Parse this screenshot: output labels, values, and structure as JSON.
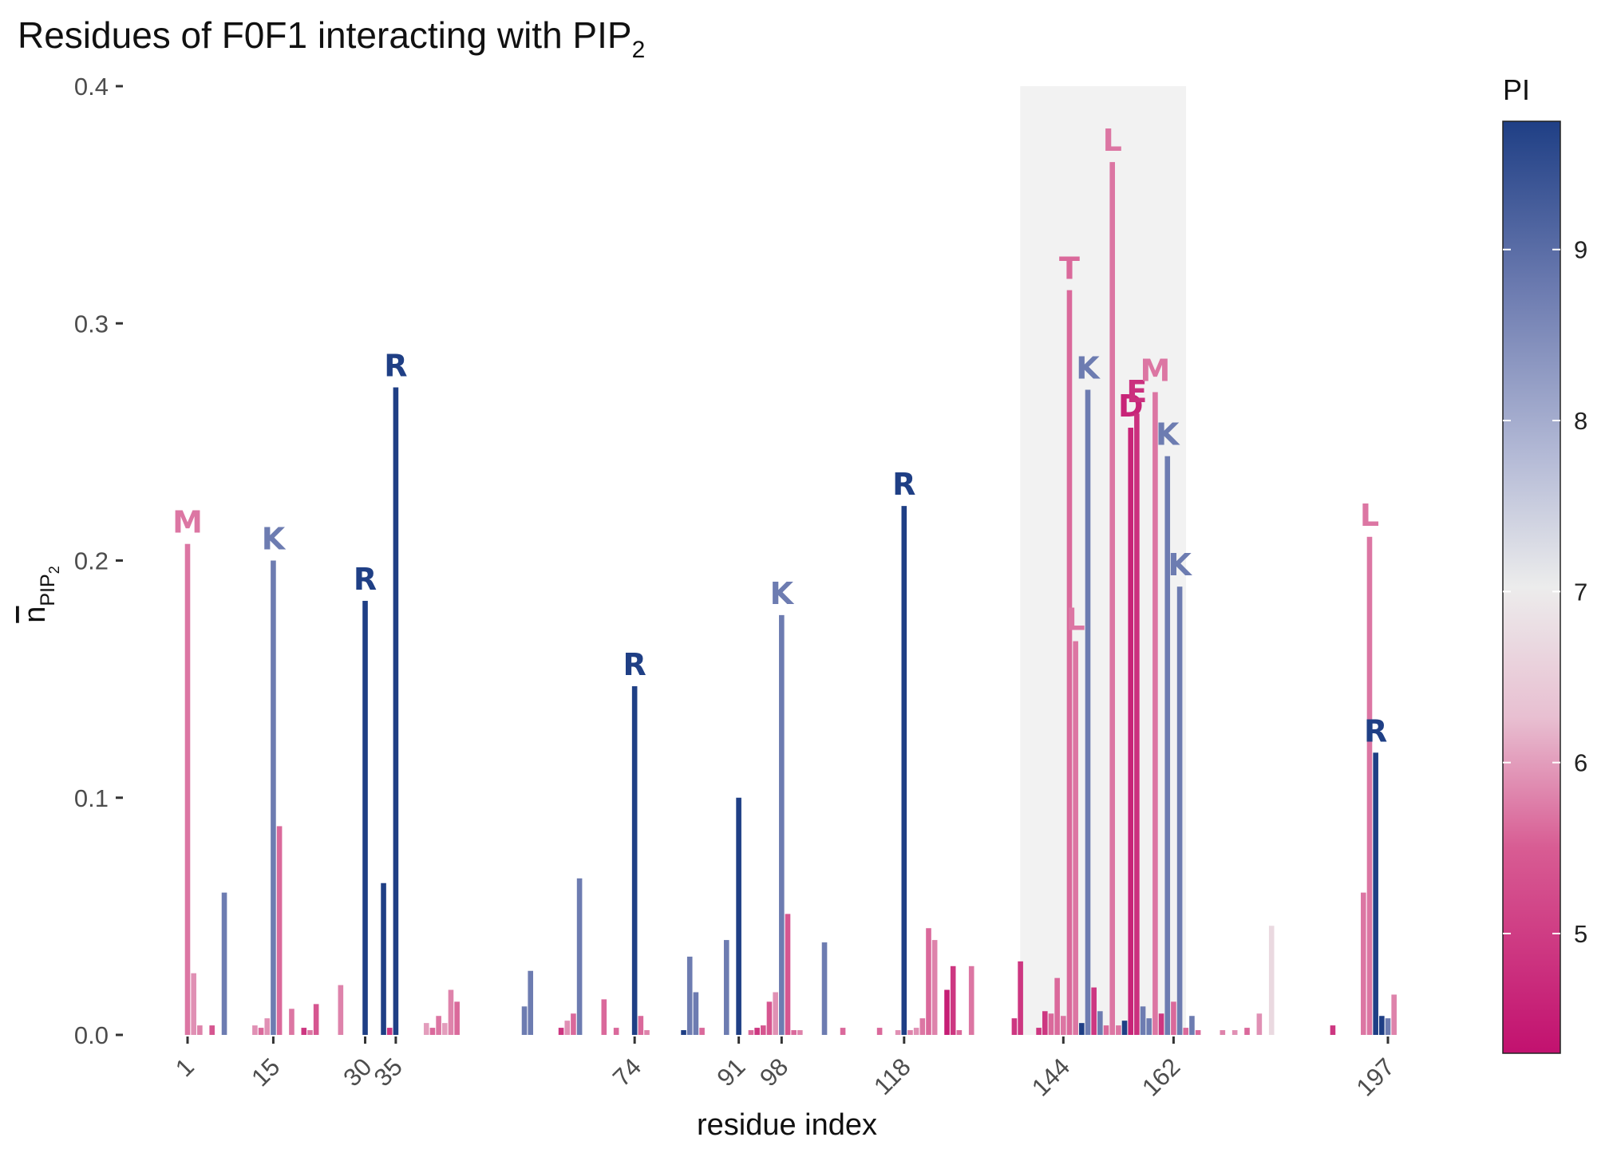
{
  "chart_data": {
    "type": "bar",
    "title": "Residues of F0F1 interacting with PIP",
    "title_subscript": "2",
    "xlabel": "residue index",
    "ylabel_main": "n",
    "ylabel_sub": "PIP",
    "ylabel_sub2": "2",
    "xlim": [
      -1,
      200
    ],
    "ylim": [
      0,
      0.4
    ],
    "y_ticks": [
      0.0,
      0.1,
      0.2,
      0.3,
      0.4
    ],
    "y_tick_labels": [
      "0.0",
      "0.1",
      "0.2",
      "0.3",
      "0.4"
    ],
    "x_ticks": [
      1,
      15,
      30,
      35,
      74,
      91,
      98,
      118,
      144,
      162,
      197
    ],
    "x_tick_labels": [
      "1",
      "15",
      "30",
      "35",
      "74",
      "91",
      "98",
      "118",
      "144",
      "162",
      "197"
    ],
    "highlight_region": [
      138,
      163
    ],
    "legend": {
      "title": "PI",
      "range": [
        4.3,
        9.75
      ],
      "ticks": [
        5,
        6,
        7,
        8,
        9
      ],
      "tick_labels": [
        "5",
        "6",
        "7",
        "8",
        "9"
      ],
      "position": "right",
      "colors": [
        "#c2116f",
        "#d85c93",
        "#e8bfd1",
        "#ececec",
        "#b4bad6",
        "#6c7bb0",
        "#1f3f85"
      ]
    },
    "bars": [
      {
        "x": 1,
        "y": 0.207,
        "pi": 5.7,
        "label": "M"
      },
      {
        "x": 2,
        "y": 0.026,
        "pi": 5.9
      },
      {
        "x": 3,
        "y": 0.004,
        "pi": 5.8
      },
      {
        "x": 5,
        "y": 0.004,
        "pi": 5.4
      },
      {
        "x": 7,
        "y": 0.06,
        "pi": 8.75
      },
      {
        "x": 12,
        "y": 0.004,
        "pi": 5.9
      },
      {
        "x": 13,
        "y": 0.003,
        "pi": 5.6
      },
      {
        "x": 14,
        "y": 0.007,
        "pi": 5.9
      },
      {
        "x": 15,
        "y": 0.2,
        "pi": 8.75,
        "label": "K"
      },
      {
        "x": 16,
        "y": 0.088,
        "pi": 5.6
      },
      {
        "x": 18,
        "y": 0.011,
        "pi": 5.7
      },
      {
        "x": 20,
        "y": 0.003,
        "pi": 4.9
      },
      {
        "x": 21,
        "y": 0.002,
        "pi": 5.7
      },
      {
        "x": 22,
        "y": 0.013,
        "pi": 5.4
      },
      {
        "x": 26,
        "y": 0.021,
        "pi": 5.8
      },
      {
        "x": 30,
        "y": 0.183,
        "pi": 9.75,
        "label": "R"
      },
      {
        "x": 33,
        "y": 0.064,
        "pi": 9.75
      },
      {
        "x": 34,
        "y": 0.003,
        "pi": 4.9
      },
      {
        "x": 35,
        "y": 0.273,
        "pi": 9.75,
        "label": "R"
      },
      {
        "x": 40,
        "y": 0.005,
        "pi": 6.0
      },
      {
        "x": 41,
        "y": 0.003,
        "pi": 5.6
      },
      {
        "x": 42,
        "y": 0.008,
        "pi": 5.7
      },
      {
        "x": 43,
        "y": 0.005,
        "pi": 6.0
      },
      {
        "x": 44,
        "y": 0.019,
        "pi": 5.8
      },
      {
        "x": 45,
        "y": 0.014,
        "pi": 5.6
      },
      {
        "x": 56,
        "y": 0.012,
        "pi": 8.75
      },
      {
        "x": 57,
        "y": 0.027,
        "pi": 8.75
      },
      {
        "x": 62,
        "y": 0.003,
        "pi": 4.9
      },
      {
        "x": 63,
        "y": 0.006,
        "pi": 5.9
      },
      {
        "x": 64,
        "y": 0.009,
        "pi": 5.6
      },
      {
        "x": 65,
        "y": 0.066,
        "pi": 8.75
      },
      {
        "x": 69,
        "y": 0.015,
        "pi": 5.6
      },
      {
        "x": 71,
        "y": 0.003,
        "pi": 5.6
      },
      {
        "x": 74,
        "y": 0.147,
        "pi": 9.75,
        "label": "R"
      },
      {
        "x": 75,
        "y": 0.008,
        "pi": 5.6
      },
      {
        "x": 76,
        "y": 0.002,
        "pi": 5.8
      },
      {
        "x": 82,
        "y": 0.002,
        "pi": 9.75
      },
      {
        "x": 83,
        "y": 0.033,
        "pi": 8.75
      },
      {
        "x": 84,
        "y": 0.018,
        "pi": 8.75
      },
      {
        "x": 85,
        "y": 0.003,
        "pi": 5.6
      },
      {
        "x": 89,
        "y": 0.04,
        "pi": 8.75
      },
      {
        "x": 91,
        "y": 0.1,
        "pi": 9.75
      },
      {
        "x": 93,
        "y": 0.002,
        "pi": 5.6
      },
      {
        "x": 94,
        "y": 0.003,
        "pi": 4.9
      },
      {
        "x": 95,
        "y": 0.004,
        "pi": 5.4
      },
      {
        "x": 96,
        "y": 0.014,
        "pi": 5.4
      },
      {
        "x": 97,
        "y": 0.018,
        "pi": 5.9
      },
      {
        "x": 98,
        "y": 0.177,
        "pi": 8.75,
        "label": "K"
      },
      {
        "x": 99,
        "y": 0.051,
        "pi": 5.4
      },
      {
        "x": 100,
        "y": 0.002,
        "pi": 5.6
      },
      {
        "x": 101,
        "y": 0.002,
        "pi": 5.8
      },
      {
        "x": 105,
        "y": 0.039,
        "pi": 8.75
      },
      {
        "x": 108,
        "y": 0.003,
        "pi": 5.6
      },
      {
        "x": 114,
        "y": 0.003,
        "pi": 5.6
      },
      {
        "x": 117,
        "y": 0.002,
        "pi": 5.9
      },
      {
        "x": 118,
        "y": 0.223,
        "pi": 9.75,
        "label": "R"
      },
      {
        "x": 119,
        "y": 0.002,
        "pi": 5.8
      },
      {
        "x": 120,
        "y": 0.003,
        "pi": 5.9
      },
      {
        "x": 121,
        "y": 0.007,
        "pi": 5.7
      },
      {
        "x": 122,
        "y": 0.045,
        "pi": 5.6
      },
      {
        "x": 123,
        "y": 0.04,
        "pi": 5.8
      },
      {
        "x": 125,
        "y": 0.019,
        "pi": 4.5
      },
      {
        "x": 126,
        "y": 0.029,
        "pi": 4.9
      },
      {
        "x": 127,
        "y": 0.002,
        "pi": 5.6
      },
      {
        "x": 129,
        "y": 0.029,
        "pi": 5.7
      },
      {
        "x": 136,
        "y": 0.007,
        "pi": 4.9
      },
      {
        "x": 137,
        "y": 0.031,
        "pi": 4.9
      },
      {
        "x": 140,
        "y": 0.003,
        "pi": 4.9
      },
      {
        "x": 141,
        "y": 0.01,
        "pi": 4.9
      },
      {
        "x": 142,
        "y": 0.009,
        "pi": 5.6
      },
      {
        "x": 143,
        "y": 0.024,
        "pi": 5.6
      },
      {
        "x": 144,
        "y": 0.008,
        "pi": 5.7
      },
      {
        "x": 145,
        "y": 0.314,
        "pi": 5.6,
        "label": "T"
      },
      {
        "x": 146,
        "y": 0.166,
        "pi": 5.7,
        "label": "L"
      },
      {
        "x": 147,
        "y": 0.005,
        "pi": 9.75
      },
      {
        "x": 148,
        "y": 0.272,
        "pi": 8.75,
        "label": "K"
      },
      {
        "x": 149,
        "y": 0.02,
        "pi": 4.9
      },
      {
        "x": 150,
        "y": 0.01,
        "pi": 8.75
      },
      {
        "x": 151,
        "y": 0.004,
        "pi": 5.6
      },
      {
        "x": 152,
        "y": 0.368,
        "pi": 5.7,
        "label": "L"
      },
      {
        "x": 153,
        "y": 0.004,
        "pi": 5.7
      },
      {
        "x": 154,
        "y": 0.006,
        "pi": 9.75
      },
      {
        "x": 155,
        "y": 0.256,
        "pi": 4.6,
        "label": "D"
      },
      {
        "x": 156,
        "y": 0.262,
        "pi": 4.8,
        "label": "E"
      },
      {
        "x": 157,
        "y": 0.012,
        "pi": 8.75
      },
      {
        "x": 158,
        "y": 0.007,
        "pi": 8.75
      },
      {
        "x": 159,
        "y": 0.271,
        "pi": 5.7,
        "label": "M"
      },
      {
        "x": 160,
        "y": 0.009,
        "pi": 4.9
      },
      {
        "x": 161,
        "y": 0.244,
        "pi": 8.75,
        "label": "K"
      },
      {
        "x": 162,
        "y": 0.014,
        "pi": 5.6
      },
      {
        "x": 163,
        "y": 0.189,
        "pi": 8.75,
        "label": "K"
      },
      {
        "x": 164,
        "y": 0.003,
        "pi": 5.6
      },
      {
        "x": 165,
        "y": 0.008,
        "pi": 8.75
      },
      {
        "x": 166,
        "y": 0.002,
        "pi": 5.6
      },
      {
        "x": 170,
        "y": 0.002,
        "pi": 5.8
      },
      {
        "x": 172,
        "y": 0.002,
        "pi": 5.9
      },
      {
        "x": 174,
        "y": 0.003,
        "pi": 5.6
      },
      {
        "x": 176,
        "y": 0.009,
        "pi": 5.9
      },
      {
        "x": 178,
        "y": 0.046,
        "pi": 6.7
      },
      {
        "x": 188,
        "y": 0.004,
        "pi": 4.9
      },
      {
        "x": 193,
        "y": 0.06,
        "pi": 5.7
      },
      {
        "x": 194,
        "y": 0.21,
        "pi": 5.7,
        "label": "L"
      },
      {
        "x": 195,
        "y": 0.119,
        "pi": 9.75,
        "label": "R"
      },
      {
        "x": 196,
        "y": 0.008,
        "pi": 9.75
      },
      {
        "x": 197,
        "y": 0.007,
        "pi": 8.75
      },
      {
        "x": 198,
        "y": 0.017,
        "pi": 5.8
      }
    ]
  }
}
